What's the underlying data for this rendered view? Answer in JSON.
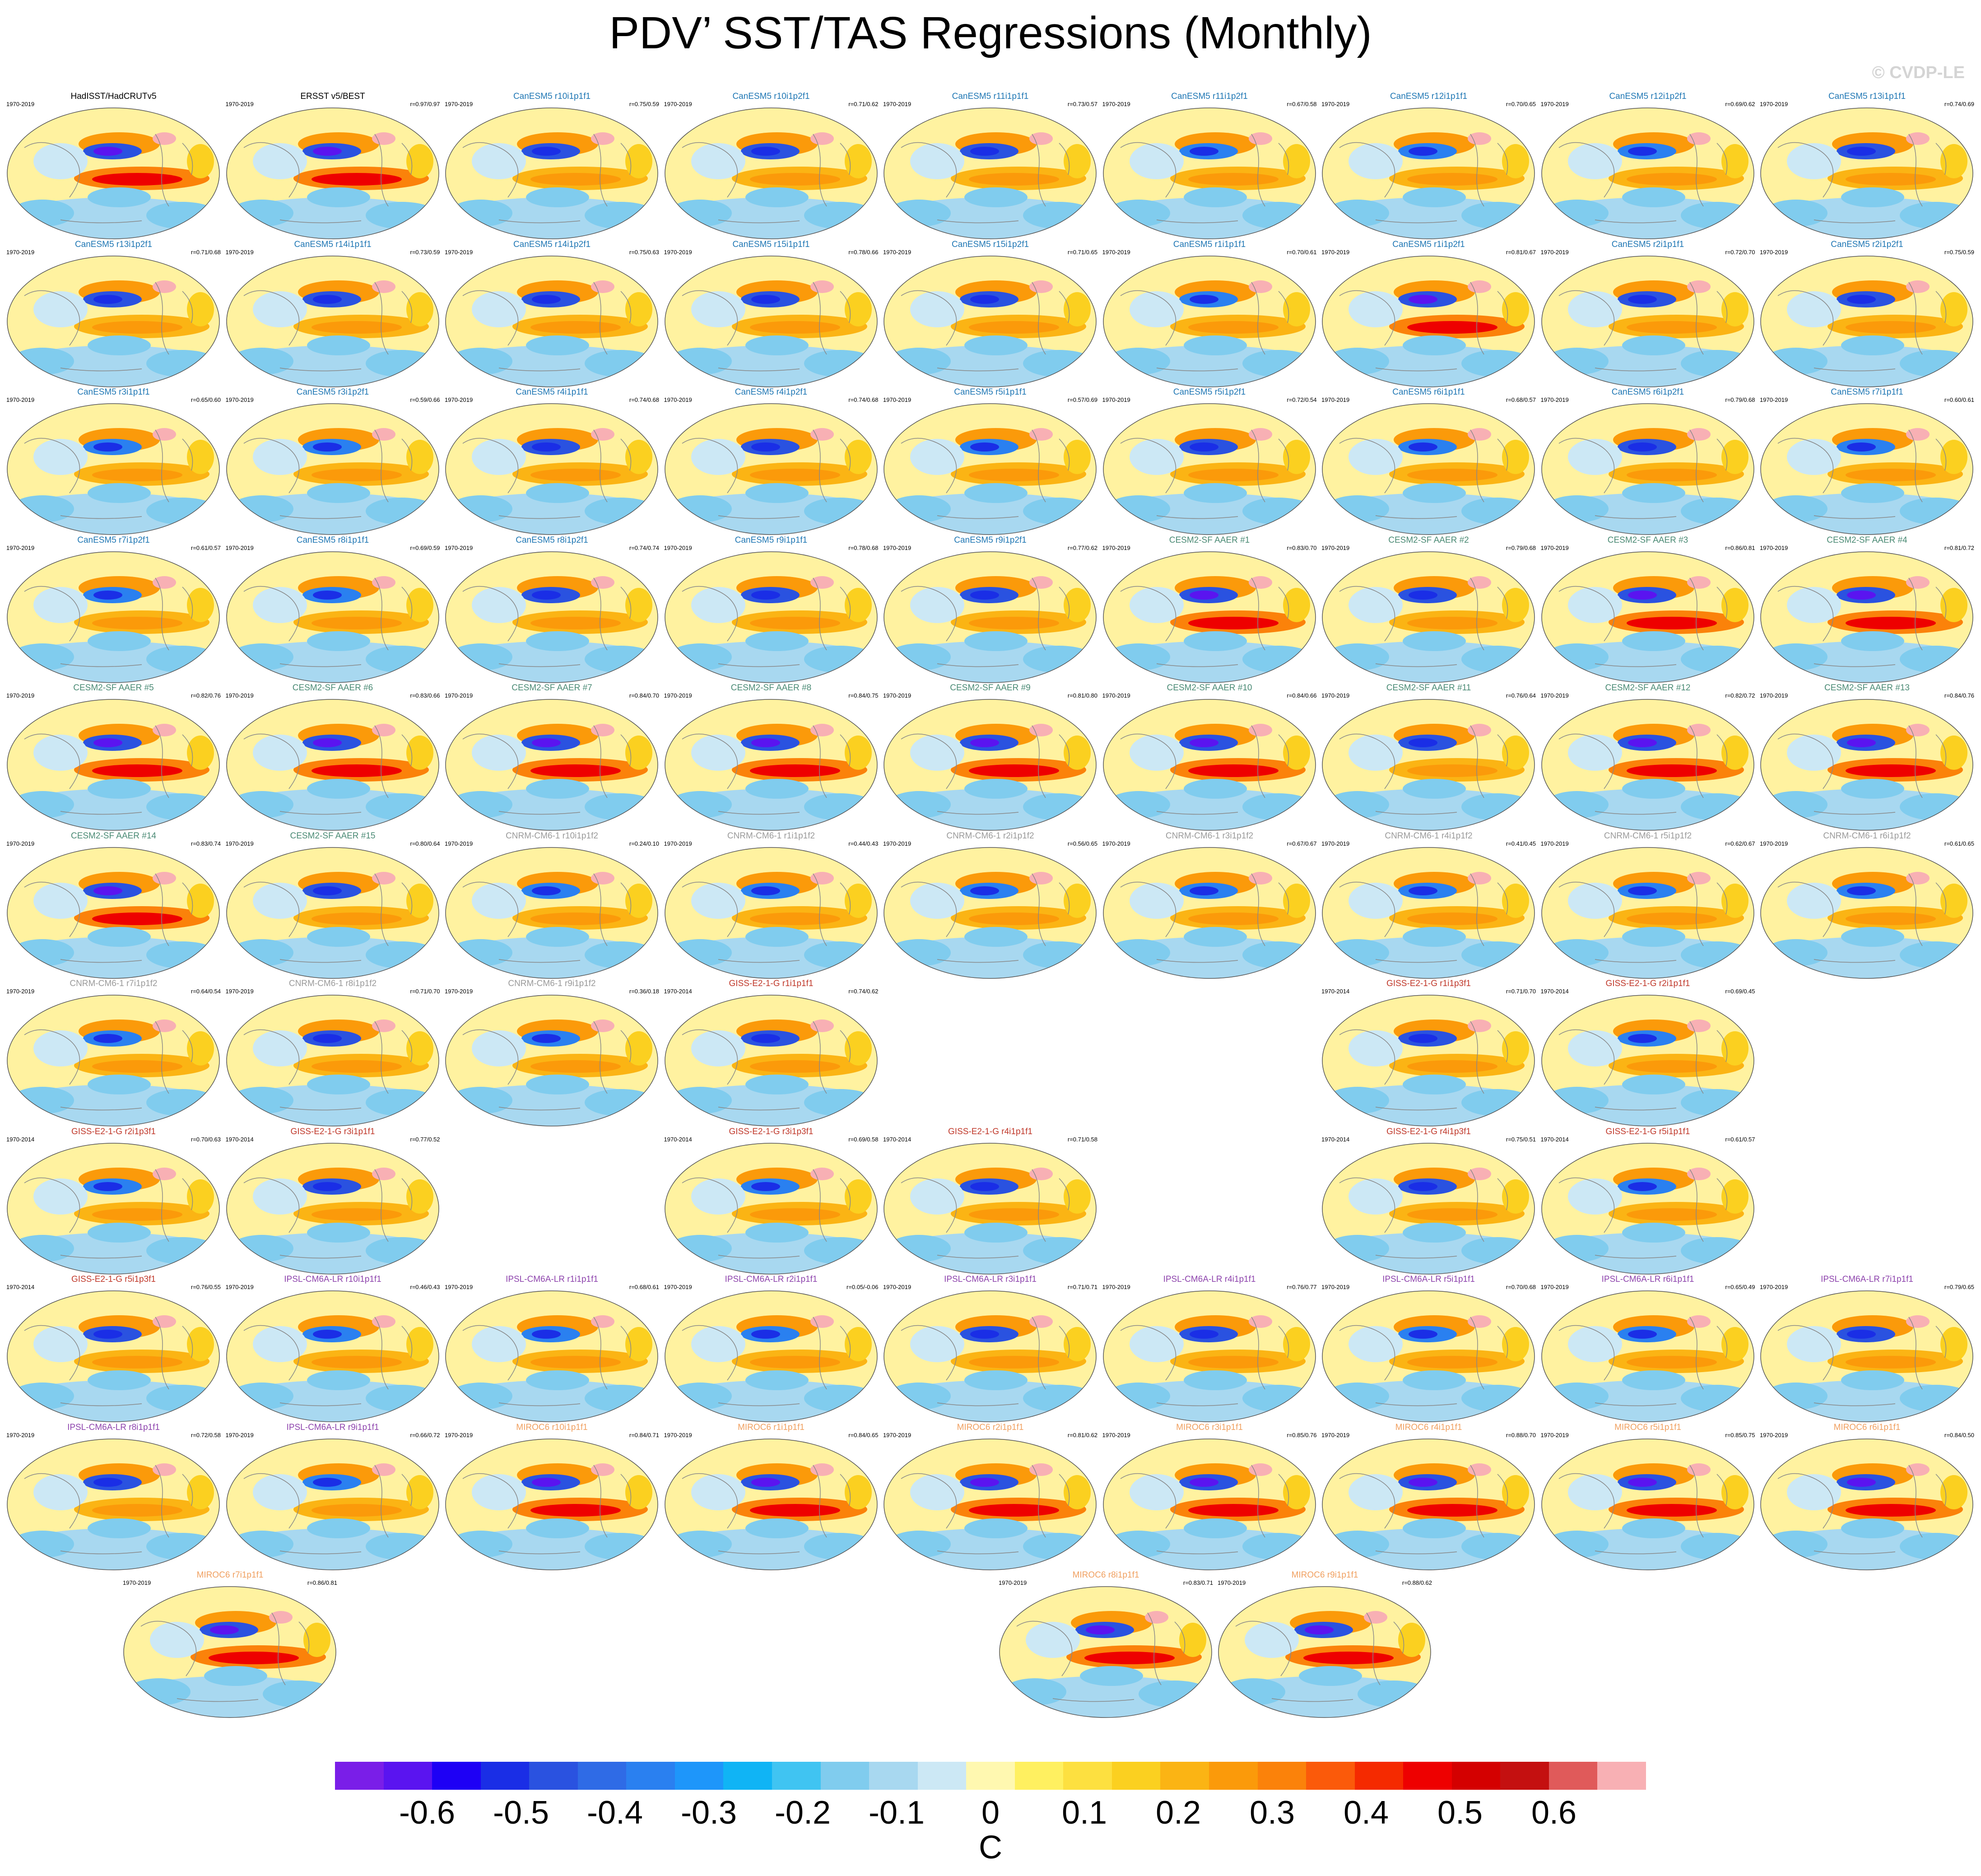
{
  "title": "PDV’ SST/TAS Regressions (Monthly)",
  "watermark": "© CVDP-LE",
  "colors": {
    "obs": "#000000",
    "CanESM5": "#1f77b4",
    "CESM2": "#4a8a74",
    "CNRM": "#9a9a9a",
    "GISS": "#c0392b",
    "IPSL": "#8e44ad",
    "MIROC": "#f0a060"
  },
  "panels": [
    {
      "title": "HadISST/HadCRUTv5",
      "period": "1970-2019",
      "corr": "",
      "model": "obs"
    },
    {
      "title": "ERSST v5/BEST",
      "period": "1970-2019",
      "corr": "r=0.97/0.97",
      "model": "obs"
    },
    {
      "title": "CanESM5 r10i1p1f1",
      "period": "1970-2019",
      "corr": "r=0.75/0.59",
      "model": "CanESM5"
    },
    {
      "title": "CanESM5 r10i1p2f1",
      "period": "1970-2019",
      "corr": "r=0.71/0.62",
      "model": "CanESM5"
    },
    {
      "title": "CanESM5 r11i1p1f1",
      "period": "1970-2019",
      "corr": "r=0.73/0.57",
      "model": "CanESM5"
    },
    {
      "title": "CanESM5 r11i1p2f1",
      "period": "1970-2019",
      "corr": "r=0.67/0.58",
      "model": "CanESM5"
    },
    {
      "title": "CanESM5 r12i1p1f1",
      "period": "1970-2019",
      "corr": "r=0.70/0.65",
      "model": "CanESM5"
    },
    {
      "title": "CanESM5 r12i1p2f1",
      "period": "1970-2019",
      "corr": "r=0.69/0.62",
      "model": "CanESM5"
    },
    {
      "title": "CanESM5 r13i1p1f1",
      "period": "1970-2019",
      "corr": "r=0.74/0.69",
      "model": "CanESM5"
    },
    {
      "title": "CanESM5 r13i1p2f1",
      "period": "1970-2019",
      "corr": "r=0.71/0.68",
      "model": "CanESM5"
    },
    {
      "title": "CanESM5 r14i1p1f1",
      "period": "1970-2019",
      "corr": "r=0.73/0.59",
      "model": "CanESM5"
    },
    {
      "title": "CanESM5 r14i1p2f1",
      "period": "1970-2019",
      "corr": "r=0.75/0.63",
      "model": "CanESM5"
    },
    {
      "title": "CanESM5 r15i1p1f1",
      "period": "1970-2019",
      "corr": "r=0.78/0.66",
      "model": "CanESM5"
    },
    {
      "title": "CanESM5 r15i1p2f1",
      "period": "1970-2019",
      "corr": "r=0.71/0.65",
      "model": "CanESM5"
    },
    {
      "title": "CanESM5 r1i1p1f1",
      "period": "1970-2019",
      "corr": "r=0.70/0.61",
      "model": "CanESM5"
    },
    {
      "title": "CanESM5 r1i1p2f1",
      "period": "1970-2019",
      "corr": "r=0.81/0.67",
      "model": "CanESM5"
    },
    {
      "title": "CanESM5 r2i1p1f1",
      "period": "1970-2019",
      "corr": "r=0.72/0.70",
      "model": "CanESM5"
    },
    {
      "title": "CanESM5 r2i1p2f1",
      "period": "1970-2019",
      "corr": "r=0.75/0.59",
      "model": "CanESM5"
    },
    {
      "title": "CanESM5 r3i1p1f1",
      "period": "1970-2019",
      "corr": "r=0.65/0.60",
      "model": "CanESM5"
    },
    {
      "title": "CanESM5 r3i1p2f1",
      "period": "1970-2019",
      "corr": "r=0.59/0.66",
      "model": "CanESM5"
    },
    {
      "title": "CanESM5 r4i1p1f1",
      "period": "1970-2019",
      "corr": "r=0.74/0.68",
      "model": "CanESM5"
    },
    {
      "title": "CanESM5 r4i1p2f1",
      "period": "1970-2019",
      "corr": "r=0.74/0.68",
      "model": "CanESM5"
    },
    {
      "title": "CanESM5 r5i1p1f1",
      "period": "1970-2019",
      "corr": "r=0.57/0.69",
      "model": "CanESM5"
    },
    {
      "title": "CanESM5 r5i1p2f1",
      "period": "1970-2019",
      "corr": "r=0.72/0.54",
      "model": "CanESM5"
    },
    {
      "title": "CanESM5 r6i1p1f1",
      "period": "1970-2019",
      "corr": "r=0.68/0.57",
      "model": "CanESM5"
    },
    {
      "title": "CanESM5 r6i1p2f1",
      "period": "1970-2019",
      "corr": "r=0.79/0.68",
      "model": "CanESM5"
    },
    {
      "title": "CanESM5 r7i1p1f1",
      "period": "1970-2019",
      "corr": "r=0.60/0.61",
      "model": "CanESM5"
    },
    {
      "title": "CanESM5 r7i1p2f1",
      "period": "1970-2019",
      "corr": "r=0.61/0.57",
      "model": "CanESM5"
    },
    {
      "title": "CanESM5 r8i1p1f1",
      "period": "1970-2019",
      "corr": "r=0.69/0.59",
      "model": "CanESM5"
    },
    {
      "title": "CanESM5 r8i1p2f1",
      "period": "1970-2019",
      "corr": "r=0.74/0.74",
      "model": "CanESM5"
    },
    {
      "title": "CanESM5 r9i1p1f1",
      "period": "1970-2019",
      "corr": "r=0.78/0.68",
      "model": "CanESM5"
    },
    {
      "title": "CanESM5 r9i1p2f1",
      "period": "1970-2019",
      "corr": "r=0.77/0.62",
      "model": "CanESM5"
    },
    {
      "title": "CESM2-SF AAER #1",
      "period": "1970-2019",
      "corr": "r=0.83/0.70",
      "model": "CESM2"
    },
    {
      "title": "CESM2-SF AAER #2",
      "period": "1970-2019",
      "corr": "r=0.79/0.68",
      "model": "CESM2"
    },
    {
      "title": "CESM2-SF AAER #3",
      "period": "1970-2019",
      "corr": "r=0.86/0.81",
      "model": "CESM2"
    },
    {
      "title": "CESM2-SF AAER #4",
      "period": "1970-2019",
      "corr": "r=0.81/0.72",
      "model": "CESM2"
    },
    {
      "title": "CESM2-SF AAER #5",
      "period": "1970-2019",
      "corr": "r=0.82/0.76",
      "model": "CESM2"
    },
    {
      "title": "CESM2-SF AAER #6",
      "period": "1970-2019",
      "corr": "r=0.83/0.66",
      "model": "CESM2"
    },
    {
      "title": "CESM2-SF AAER #7",
      "period": "1970-2019",
      "corr": "r=0.84/0.70",
      "model": "CESM2"
    },
    {
      "title": "CESM2-SF AAER #8",
      "period": "1970-2019",
      "corr": "r=0.84/0.75",
      "model": "CESM2"
    },
    {
      "title": "CESM2-SF AAER #9",
      "period": "1970-2019",
      "corr": "r=0.81/0.80",
      "model": "CESM2"
    },
    {
      "title": "CESM2-SF AAER #10",
      "period": "1970-2019",
      "corr": "r=0.84/0.66",
      "model": "CESM2"
    },
    {
      "title": "CESM2-SF AAER #11",
      "period": "1970-2019",
      "corr": "r=0.76/0.64",
      "model": "CESM2"
    },
    {
      "title": "CESM2-SF AAER #12",
      "period": "1970-2019",
      "corr": "r=0.82/0.72",
      "model": "CESM2"
    },
    {
      "title": "CESM2-SF AAER #13",
      "period": "1970-2019",
      "corr": "r=0.84/0.76",
      "model": "CESM2"
    },
    {
      "title": "CESM2-SF AAER #14",
      "period": "1970-2019",
      "corr": "r=0.83/0.74",
      "model": "CESM2"
    },
    {
      "title": "CESM2-SF AAER #15",
      "period": "1970-2019",
      "corr": "r=0.80/0.64",
      "model": "CESM2"
    },
    {
      "title": "CNRM-CM6-1 r10i1p1f2",
      "period": "1970-2019",
      "corr": "r=0.24/0.10",
      "model": "CNRM"
    },
    {
      "title": "CNRM-CM6-1 r1i1p1f2",
      "period": "1970-2019",
      "corr": "r=0.44/0.43",
      "model": "CNRM"
    },
    {
      "title": "CNRM-CM6-1 r2i1p1f2",
      "period": "1970-2019",
      "corr": "r=0.56/0.65",
      "model": "CNRM"
    },
    {
      "title": "CNRM-CM6-1 r3i1p1f2",
      "period": "1970-2019",
      "corr": "r=0.67/0.67",
      "model": "CNRM"
    },
    {
      "title": "CNRM-CM6-1 r4i1p1f2",
      "period": "1970-2019",
      "corr": "r=0.41/0.45",
      "model": "CNRM"
    },
    {
      "title": "CNRM-CM6-1 r5i1p1f2",
      "period": "1970-2019",
      "corr": "r=0.62/0.67",
      "model": "CNRM"
    },
    {
      "title": "CNRM-CM6-1 r6i1p1f2",
      "period": "1970-2019",
      "corr": "r=0.61/0.65",
      "model": "CNRM"
    },
    {
      "title": "CNRM-CM6-1 r7i1p1f2",
      "period": "1970-2019",
      "corr": "r=0.64/0.54",
      "model": "CNRM"
    },
    {
      "title": "CNRM-CM6-1 r8i1p1f2",
      "period": "1970-2019",
      "corr": "r=0.71/0.70",
      "model": "CNRM"
    },
    {
      "title": "CNRM-CM6-1 r9i1p1f2",
      "period": "1970-2019",
      "corr": "r=0.36/0.18",
      "model": "CNRM"
    },
    {
      "title": "GISS-E2-1-G r1i1p1f1",
      "period": "1970-2014",
      "corr": "r=0.74/0.62",
      "model": "GISS"
    },
    null,
    null,
    {
      "title": "GISS-E2-1-G r1i1p3f1",
      "period": "1970-2014",
      "corr": "r=0.71/0.70",
      "model": "GISS"
    },
    {
      "title": "GISS-E2-1-G r2i1p1f1",
      "period": "1970-2014",
      "corr": "r=0.69/0.45",
      "model": "GISS"
    },
    null,
    {
      "title": "GISS-E2-1-G r2i1p3f1",
      "period": "1970-2014",
      "corr": "r=0.70/0.63",
      "model": "GISS"
    },
    {
      "title": "GISS-E2-1-G r3i1p1f1",
      "period": "1970-2014",
      "corr": "r=0.77/0.52",
      "model": "GISS"
    },
    null,
    {
      "title": "GISS-E2-1-G r3i1p3f1",
      "period": "1970-2014",
      "corr": "r=0.69/0.58",
      "model": "GISS"
    },
    {
      "title": "GISS-E2-1-G r4i1p1f1",
      "period": "1970-2014",
      "corr": "r=0.71/0.58",
      "model": "GISS"
    },
    null,
    {
      "title": "GISS-E2-1-G r4i1p3f1",
      "period": "1970-2014",
      "corr": "r=0.75/0.51",
      "model": "GISS"
    },
    {
      "title": "GISS-E2-1-G r5i1p1f1",
      "period": "1970-2014",
      "corr": "r=0.61/0.57",
      "model": "GISS"
    },
    null,
    {
      "title": "GISS-E2-1-G r5i1p3f1",
      "period": "1970-2014",
      "corr": "r=0.76/0.55",
      "model": "GISS"
    },
    {
      "title": "IPSL-CM6A-LR r10i1p1f1",
      "period": "1970-2019",
      "corr": "r=0.46/0.43",
      "model": "IPSL"
    },
    {
      "title": "IPSL-CM6A-LR r1i1p1f1",
      "period": "1970-2019",
      "corr": "r=0.68/0.61",
      "model": "IPSL"
    },
    {
      "title": "IPSL-CM6A-LR r2i1p1f1",
      "period": "1970-2019",
      "corr": "r=0.05/-0.06",
      "model": "IPSL"
    },
    {
      "title": "IPSL-CM6A-LR r3i1p1f1",
      "period": "1970-2019",
      "corr": "r=0.71/0.71",
      "model": "IPSL"
    },
    {
      "title": "IPSL-CM6A-LR r4i1p1f1",
      "period": "1970-2019",
      "corr": "r=0.76/0.77",
      "model": "IPSL"
    },
    {
      "title": "IPSL-CM6A-LR r5i1p1f1",
      "period": "1970-2019",
      "corr": "r=0.70/0.68",
      "model": "IPSL"
    },
    {
      "title": "IPSL-CM6A-LR r6i1p1f1",
      "period": "1970-2019",
      "corr": "r=0.65/0.49",
      "model": "IPSL"
    },
    {
      "title": "IPSL-CM6A-LR r7i1p1f1",
      "period": "1970-2019",
      "corr": "r=0.79/0.65",
      "model": "IPSL"
    },
    {
      "title": "IPSL-CM6A-LR r8i1p1f1",
      "period": "1970-2019",
      "corr": "r=0.72/0.58",
      "model": "IPSL"
    },
    {
      "title": "IPSL-CM6A-LR r9i1p1f1",
      "period": "1970-2019",
      "corr": "r=0.66/0.72",
      "model": "IPSL"
    },
    {
      "title": "MIROC6 r10i1p1f1",
      "period": "1970-2019",
      "corr": "r=0.84/0.71",
      "model": "MIROC"
    },
    {
      "title": "MIROC6 r1i1p1f1",
      "period": "1970-2019",
      "corr": "r=0.84/0.65",
      "model": "MIROC"
    },
    {
      "title": "MIROC6 r2i1p1f1",
      "period": "1970-2019",
      "corr": "r=0.81/0.62",
      "model": "MIROC"
    },
    {
      "title": "MIROC6 r3i1p1f1",
      "period": "1970-2019",
      "corr": "r=0.85/0.76",
      "model": "MIROC"
    },
    {
      "title": "MIROC6 r4i1p1f1",
      "period": "1970-2019",
      "corr": "r=0.88/0.70",
      "model": "MIROC"
    },
    {
      "title": "MIROC6 r5i1p1f1",
      "period": "1970-2019",
      "corr": "r=0.85/0.75",
      "model": "MIROC"
    },
    {
      "title": "MIROC6 r6i1p1f1",
      "period": "1970-2019",
      "corr": "r=0.84/0.50",
      "model": "MIROC"
    },
    {
      "title": "MIROC6 r7i1p1f1",
      "period": "1970-2019",
      "corr": "r=0.86/0.81",
      "model": "MIROC"
    },
    null,
    null,
    null,
    {
      "title": "MIROC6 r8i1p1f1",
      "period": "1970-2019",
      "corr": "r=0.83/0.71",
      "model": "MIROC"
    },
    {
      "title": "MIROC6 r9i1p1f1",
      "period": "1970-2019",
      "corr": "r=0.88/0.62",
      "model": "MIROC"
    }
  ],
  "colorbar": {
    "colors": [
      "#7a1ee8",
      "#5a14f0",
      "#1e00f5",
      "#1a2ee6",
      "#2a52e0",
      "#2f6be6",
      "#2a80f0",
      "#1e96fa",
      "#10b4f5",
      "#40c4f2",
      "#80ccee",
      "#a8d8f0",
      "#cce8f5",
      "#fff8b0",
      "#fff060",
      "#fde040",
      "#fbd020",
      "#fbb414",
      "#fb9a0a",
      "#fb820a",
      "#fb5a0a",
      "#f52a00",
      "#ee0000",
      "#d40000",
      "#c41010",
      "#e05a5a",
      "#f8b0b4"
    ],
    "labels": [
      "-0.6",
      "-0.5",
      "-0.4",
      "-0.3",
      "-0.2",
      "-0.1",
      "0",
      "0.1",
      "0.2",
      "0.3",
      "0.4",
      "0.5",
      "0.6"
    ],
    "units": "C"
  }
}
